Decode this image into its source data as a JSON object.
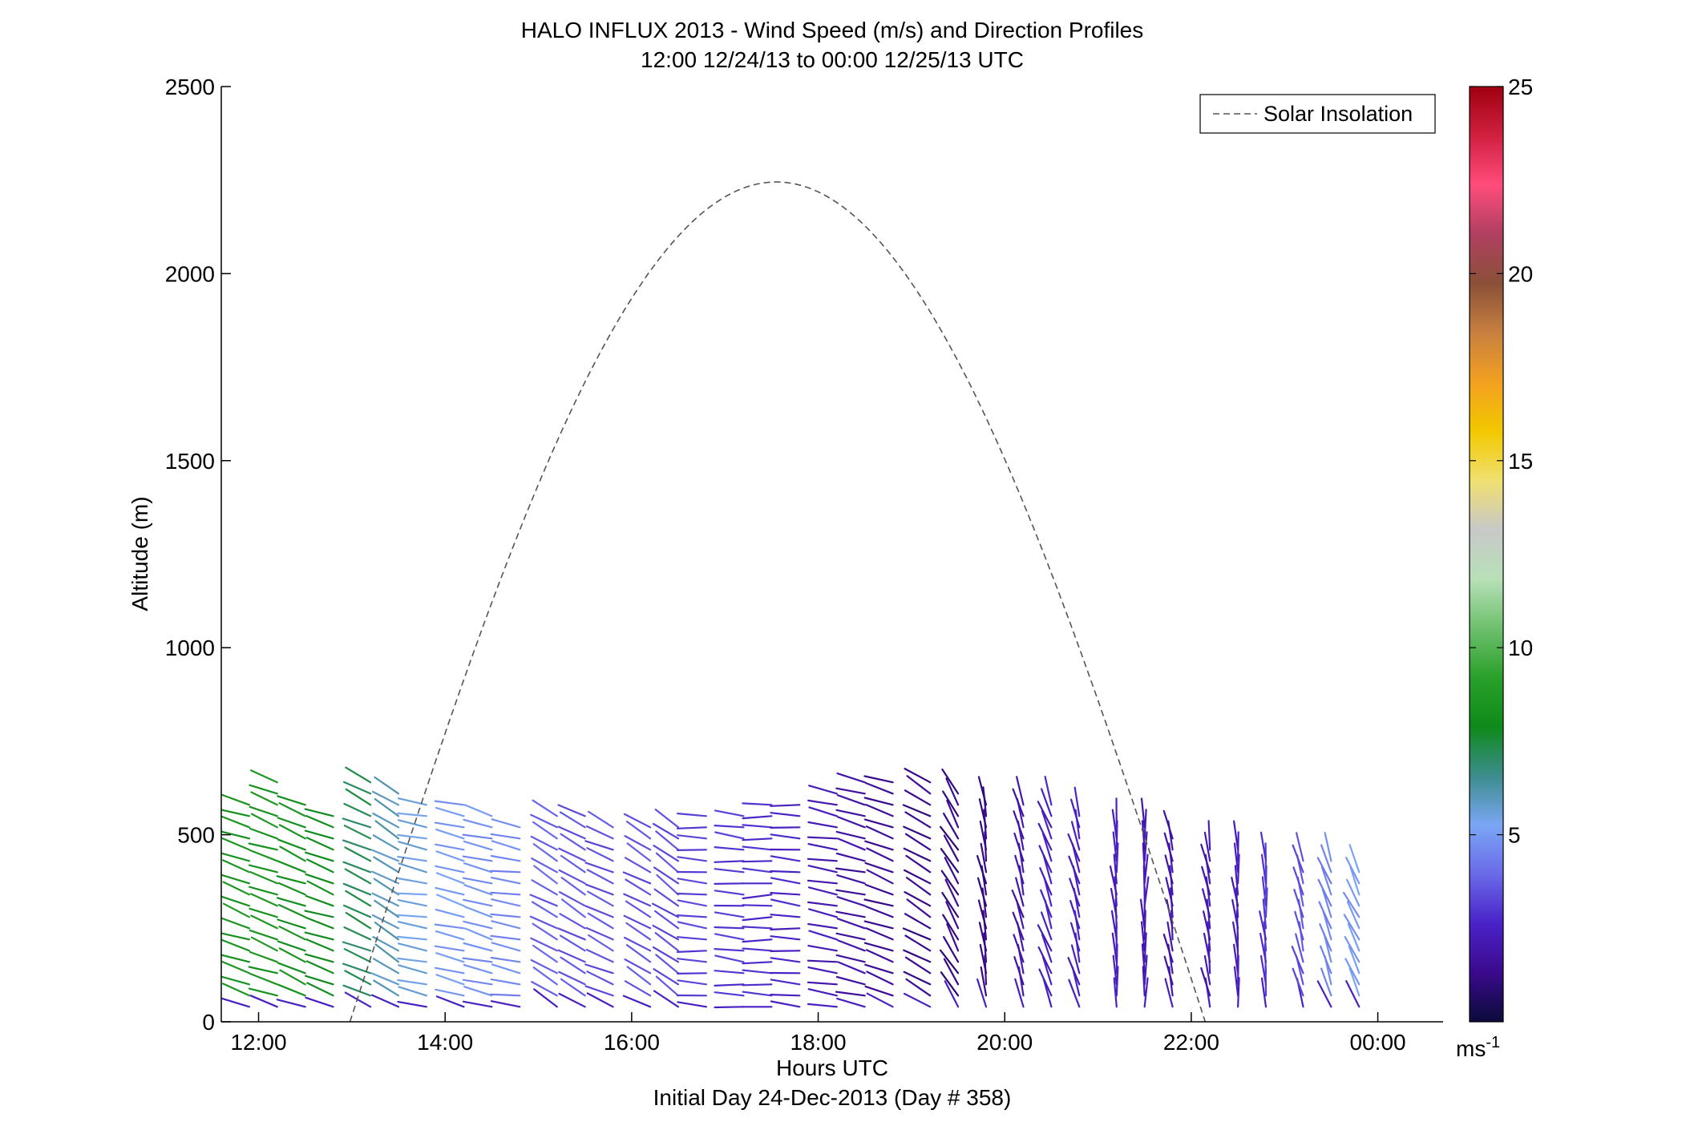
{
  "chart_data": {
    "type": "wind-profile",
    "title": "HALO INFLUX 2013 - Wind Speed (m/s) and Direction Profiles",
    "subtitle": "12:00 12/24/13 to 00:00 12/25/13  UTC",
    "xlabel": "Hours UTC",
    "xlabel2": "Initial Day 24-Dec-2013 (Day # 358)",
    "ylabel": "Altitude (m)",
    "xlim": [
      11.6,
      24.7
    ],
    "ylim": [
      0,
      2500
    ],
    "x_ticks": [
      12,
      14,
      16,
      18,
      20,
      22,
      24
    ],
    "x_tick_labels": [
      "12:00",
      "14:00",
      "16:00",
      "18:00",
      "20:00",
      "22:00",
      "00:00"
    ],
    "y_ticks": [
      0,
      500,
      1000,
      1500,
      2000,
      2500
    ],
    "y_tick_labels": [
      "0",
      "500",
      "1000",
      "1500",
      "2000",
      "2500"
    ],
    "grid": false,
    "legend": {
      "position": "top-right",
      "entries": [
        "Solar Insolation"
      ]
    },
    "colorbar": {
      "range": [
        0,
        25
      ],
      "ticks": [
        5,
        10,
        15,
        20,
        25
      ],
      "tick_labels": [
        "5",
        "10",
        "15",
        "20",
        "25"
      ],
      "unit_label": "ms",
      "unit_exponent": "-1",
      "colors": [
        "#0b0b3a",
        "#3a0a8c",
        "#4a22c8",
        "#6a6ae8",
        "#7aa6f4",
        "#3c8c8c",
        "#0f8a1a",
        "#2aa02a",
        "#6ec06e",
        "#b8e0b8",
        "#c8c8c8",
        "#f0e070",
        "#f2c800",
        "#f2a020",
        "#c88040",
        "#8a5038",
        "#b04060",
        "#ff4c7c",
        "#d02040",
        "#a00010"
      ]
    },
    "solar_insolation": {
      "name": "Solar Insolation",
      "sunrise_hour": 12.98,
      "sunset_hour": 22.15,
      "peak_hour": 17.55,
      "peak_altitude_m": 2245
    },
    "wind_profiles": {
      "times": [
        11.9,
        12.2,
        12.5,
        12.8,
        13.2,
        13.5,
        13.8,
        14.2,
        14.5,
        14.8,
        15.2,
        15.5,
        15.8,
        16.2,
        16.5,
        16.8,
        17.2,
        17.5,
        17.8,
        18.2,
        18.5,
        18.8,
        19.2,
        19.5,
        19.8,
        20.2,
        20.5,
        20.8,
        21.2,
        21.5,
        21.8,
        22.2,
        22.5,
        22.8,
        23.2,
        23.5,
        23.8
      ],
      "tops_m": [
        580,
        640,
        600,
        560,
        640,
        620,
        600,
        580,
        560,
        540,
        560,
        560,
        540,
        520,
        540,
        560,
        560,
        580,
        600,
        620,
        640,
        660,
        640,
        620,
        600,
        600,
        580,
        560,
        540,
        520,
        500,
        480,
        460,
        440,
        430,
        440,
        420
      ],
      "level_spacing_m": 30,
      "speeds_ms_by_time": [
        8.5,
        8.5,
        8.3,
        8.0,
        7.2,
        6.0,
        5.5,
        5.0,
        4.8,
        4.6,
        3.8,
        3.6,
        3.5,
        3.5,
        3.4,
        3.2,
        3.0,
        2.8,
        2.6,
        2.2,
        1.8,
        1.5,
        1.3,
        1.2,
        1.2,
        2.0,
        2.5,
        2.5,
        2.4,
        2.2,
        2.0,
        2.2,
        2.4,
        3.0,
        3.5,
        4.5,
        5.0
      ],
      "near_surface_speed_ms": 2.5,
      "directions_deg_by_time": [
        290,
        290,
        292,
        290,
        295,
        300,
        280,
        285,
        285,
        280,
        300,
        300,
        295,
        300,
        305,
        275,
        275,
        270,
        275,
        280,
        285,
        290,
        300,
        330,
        350,
        345,
        340,
        345,
        355,
        0,
        350,
        350,
        355,
        355,
        345,
        340,
        335
      ]
    }
  }
}
